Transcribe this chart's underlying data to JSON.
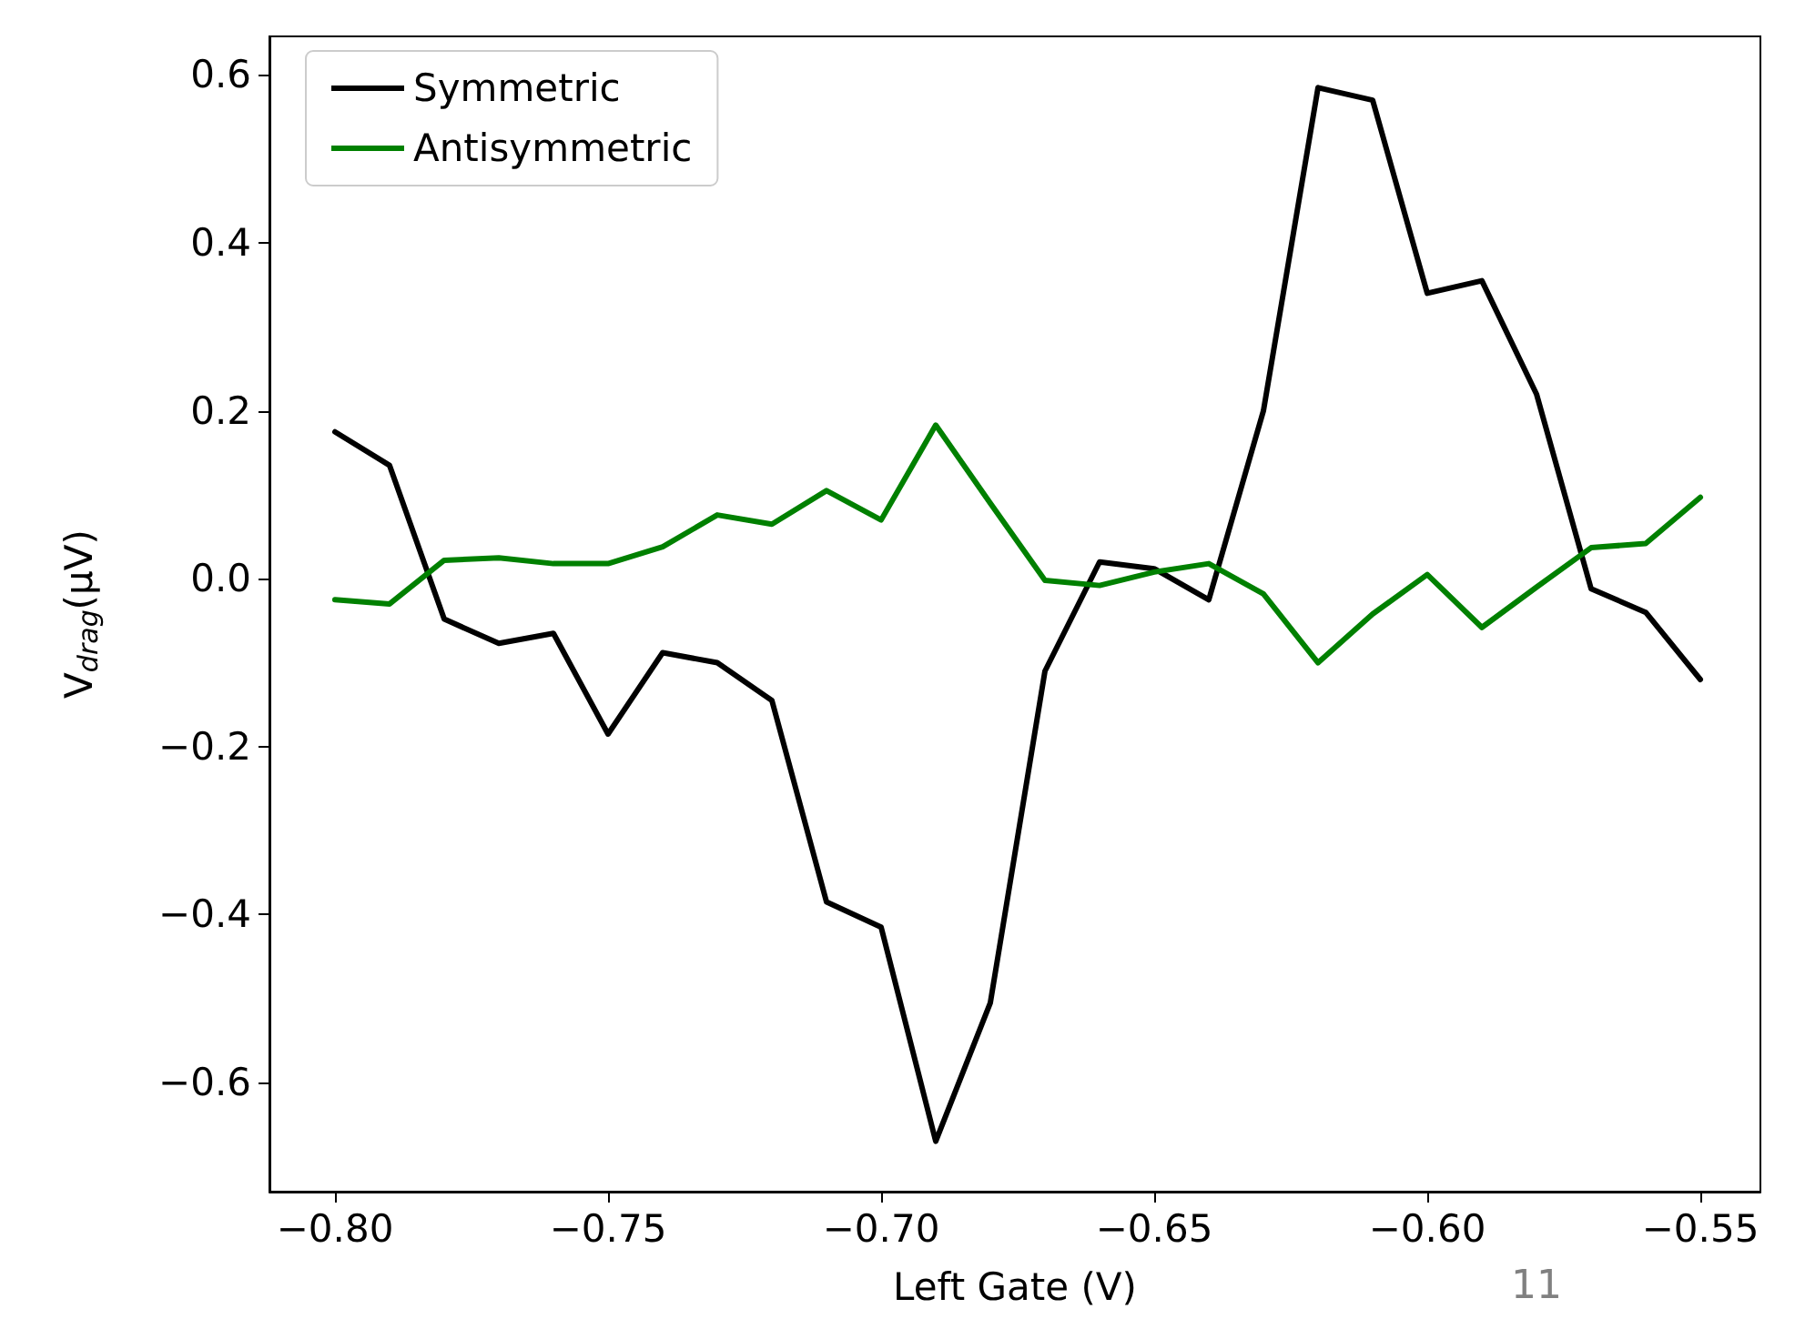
{
  "chart_data": {
    "type": "line",
    "xlabel": "Left Gate (V)",
    "ylabel": "V$_{drag}$(μV)",
    "x": [
      -0.8,
      -0.79,
      -0.78,
      -0.77,
      -0.76,
      -0.75,
      -0.74,
      -0.73,
      -0.72,
      -0.71,
      -0.7,
      -0.69,
      -0.68,
      -0.67,
      -0.66,
      -0.65,
      -0.64,
      -0.63,
      -0.62,
      -0.61,
      -0.6,
      -0.59,
      -0.58,
      -0.57,
      -0.56,
      -0.55
    ],
    "series": [
      {
        "name": "Symmetric",
        "color": "#000000",
        "values": [
          0.175,
          0.135,
          -0.048,
          -0.077,
          -0.065,
          -0.185,
          -0.088,
          -0.1,
          -0.145,
          -0.385,
          -0.415,
          -0.67,
          -0.505,
          -0.11,
          0.02,
          0.012,
          -0.025,
          0.2,
          0.585,
          0.57,
          0.34,
          0.355,
          0.22,
          -0.012,
          -0.04,
          -0.12
        ]
      },
      {
        "name": "Antisymmetric",
        "color": "#008000",
        "values": [
          -0.025,
          -0.03,
          0.022,
          0.025,
          0.018,
          0.018,
          0.038,
          0.076,
          0.065,
          0.105,
          0.07,
          0.183,
          0.09,
          -0.002,
          -0.008,
          0.008,
          0.018,
          -0.018,
          -0.1,
          -0.042,
          0.005,
          -0.058,
          -0.01,
          0.037,
          0.042,
          0.097
        ]
      }
    ],
    "xlim": [
      -0.812,
      -0.539
    ],
    "ylim": [
      -0.73,
      0.646
    ],
    "xticks": [
      {
        "value": -0.8,
        "label": "−0.80"
      },
      {
        "value": -0.75,
        "label": "−0.75"
      },
      {
        "value": -0.7,
        "label": "−0.70"
      },
      {
        "value": -0.65,
        "label": "−0.65"
      },
      {
        "value": -0.6,
        "label": "−0.60"
      },
      {
        "value": -0.55,
        "label": "−0.55"
      }
    ],
    "yticks": [
      {
        "value": -0.6,
        "label": "−0.6"
      },
      {
        "value": -0.4,
        "label": "−0.4"
      },
      {
        "value": -0.2,
        "label": "−0.2"
      },
      {
        "value": 0,
        "label": "0.0"
      },
      {
        "value": 0.2,
        "label": "0.2"
      },
      {
        "value": 0.4,
        "label": "0.4"
      },
      {
        "value": 0.6,
        "label": "0.6"
      }
    ],
    "grid": false,
    "legend": "top left",
    "marker": "none",
    "line_style": "solid",
    "annotations": [
      "11"
    ]
  }
}
